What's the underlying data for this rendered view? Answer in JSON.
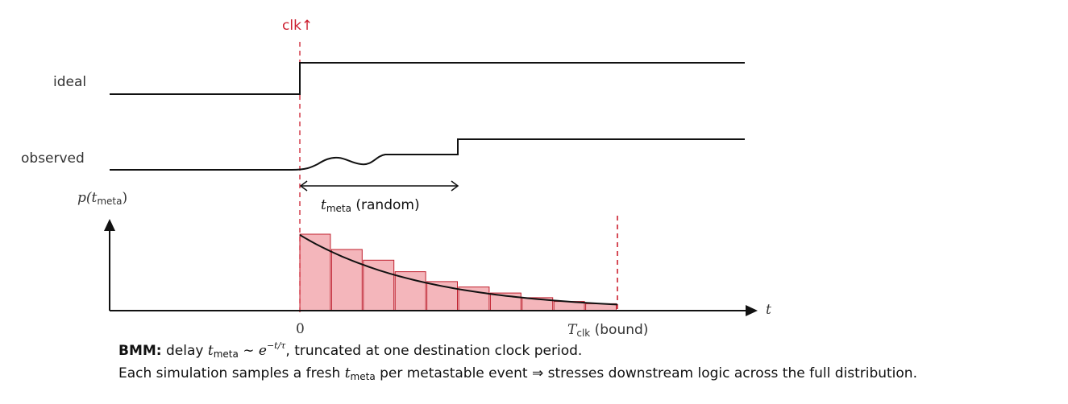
{
  "timing": {
    "clk_label": "clk↑",
    "ideal_label": "ideal",
    "observed_label": "observed",
    "tmeta_main": "t",
    "tmeta_sub": "meta",
    "tmeta_suffix": " (random)"
  },
  "pdf": {
    "ylabel_prefix": "p(t",
    "ylabel_sub": "meta",
    "ylabel_suffix": ")",
    "xlabel": "t",
    "zero_label": "0",
    "tclk_main": "T",
    "tclk_sub": "clk",
    "tclk_suffix": " (bound)",
    "histogram_values": [
      1.0,
      0.8,
      0.66,
      0.51,
      0.38,
      0.31,
      0.23,
      0.17,
      0.12,
      0.09
    ],
    "curve_start": 0.99,
    "curve_end": 0.08
  },
  "caption": {
    "line1_bold": "BMM:",
    "line1_a": " delay ",
    "line1_t": "t",
    "line1_t_sub": "meta",
    "line1_sim": " ∼ e",
    "line1_exp": "−t/τ",
    "line1_b": ", truncated at one destination clock period.",
    "line2_a": "Each simulation samples a fresh ",
    "line2_t": "t",
    "line2_t_sub": "meta",
    "line2_b": " per metastable event ⇒ stresses downstream logic across the full distribution."
  },
  "colors": {
    "accent_red": "#cc1f2f",
    "bar_fill": "#f4b6bb",
    "bar_stroke": "#c0202e",
    "line": "#111111"
  }
}
